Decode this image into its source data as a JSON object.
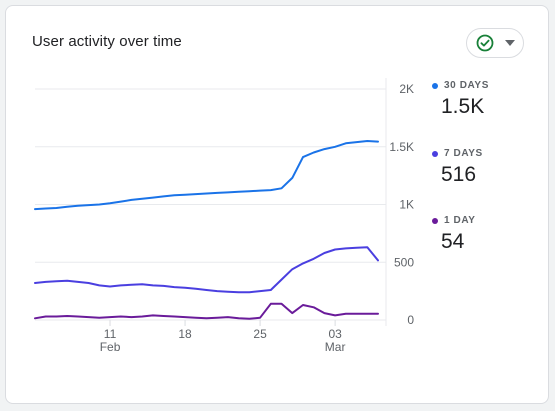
{
  "card": {
    "title": "User activity over time",
    "compare_control": {
      "icon": "check-circle-icon",
      "dropdown_icon": "caret-down-icon"
    }
  },
  "legend": [
    {
      "label": "30 DAYS",
      "value": "1.5K",
      "color": "#1a73e8"
    },
    {
      "label": "7 DAYS",
      "value": "516",
      "color": "#4a3fe0"
    },
    {
      "label": "1 DAY",
      "value": "54",
      "color": "#6a1b9a"
    }
  ],
  "chart_data": {
    "type": "line",
    "y_ticks": [
      {
        "value": 2000,
        "label": "2K"
      },
      {
        "value": 1500,
        "label": "1.5K"
      },
      {
        "value": 1000,
        "label": "1K"
      },
      {
        "value": 500,
        "label": "500"
      },
      {
        "value": 0,
        "label": "0"
      }
    ],
    "x_ticks": [
      {
        "index": 7,
        "label": "11",
        "sublabel": "Feb"
      },
      {
        "index": 14,
        "label": "18",
        "sublabel": ""
      },
      {
        "index": 21,
        "label": "25",
        "sublabel": ""
      },
      {
        "index": 28,
        "label": "03",
        "sublabel": "Mar"
      }
    ],
    "ylim": [
      0,
      2000
    ],
    "grid": true,
    "series": [
      {
        "name": "30 DAYS",
        "color": "#1a73e8",
        "values": [
          960,
          965,
          970,
          980,
          990,
          995,
          1000,
          1010,
          1025,
          1040,
          1050,
          1060,
          1070,
          1080,
          1085,
          1090,
          1095,
          1100,
          1105,
          1110,
          1115,
          1120,
          1125,
          1140,
          1230,
          1410,
          1450,
          1480,
          1500,
          1530,
          1540,
          1550,
          1545
        ]
      },
      {
        "name": "7 DAYS",
        "color": "#4a3fe0",
        "values": [
          320,
          330,
          335,
          340,
          330,
          320,
          300,
          290,
          300,
          305,
          310,
          300,
          295,
          285,
          280,
          270,
          260,
          250,
          245,
          240,
          240,
          250,
          260,
          350,
          440,
          490,
          530,
          580,
          610,
          620,
          625,
          630,
          516
        ]
      },
      {
        "name": "1 DAY",
        "color": "#6a1b9a",
        "values": [
          15,
          30,
          30,
          35,
          30,
          25,
          20,
          25,
          30,
          25,
          30,
          40,
          35,
          30,
          25,
          20,
          15,
          20,
          25,
          15,
          10,
          20,
          140,
          140,
          60,
          130,
          110,
          60,
          40,
          54,
          54,
          54,
          54
        ]
      }
    ]
  }
}
